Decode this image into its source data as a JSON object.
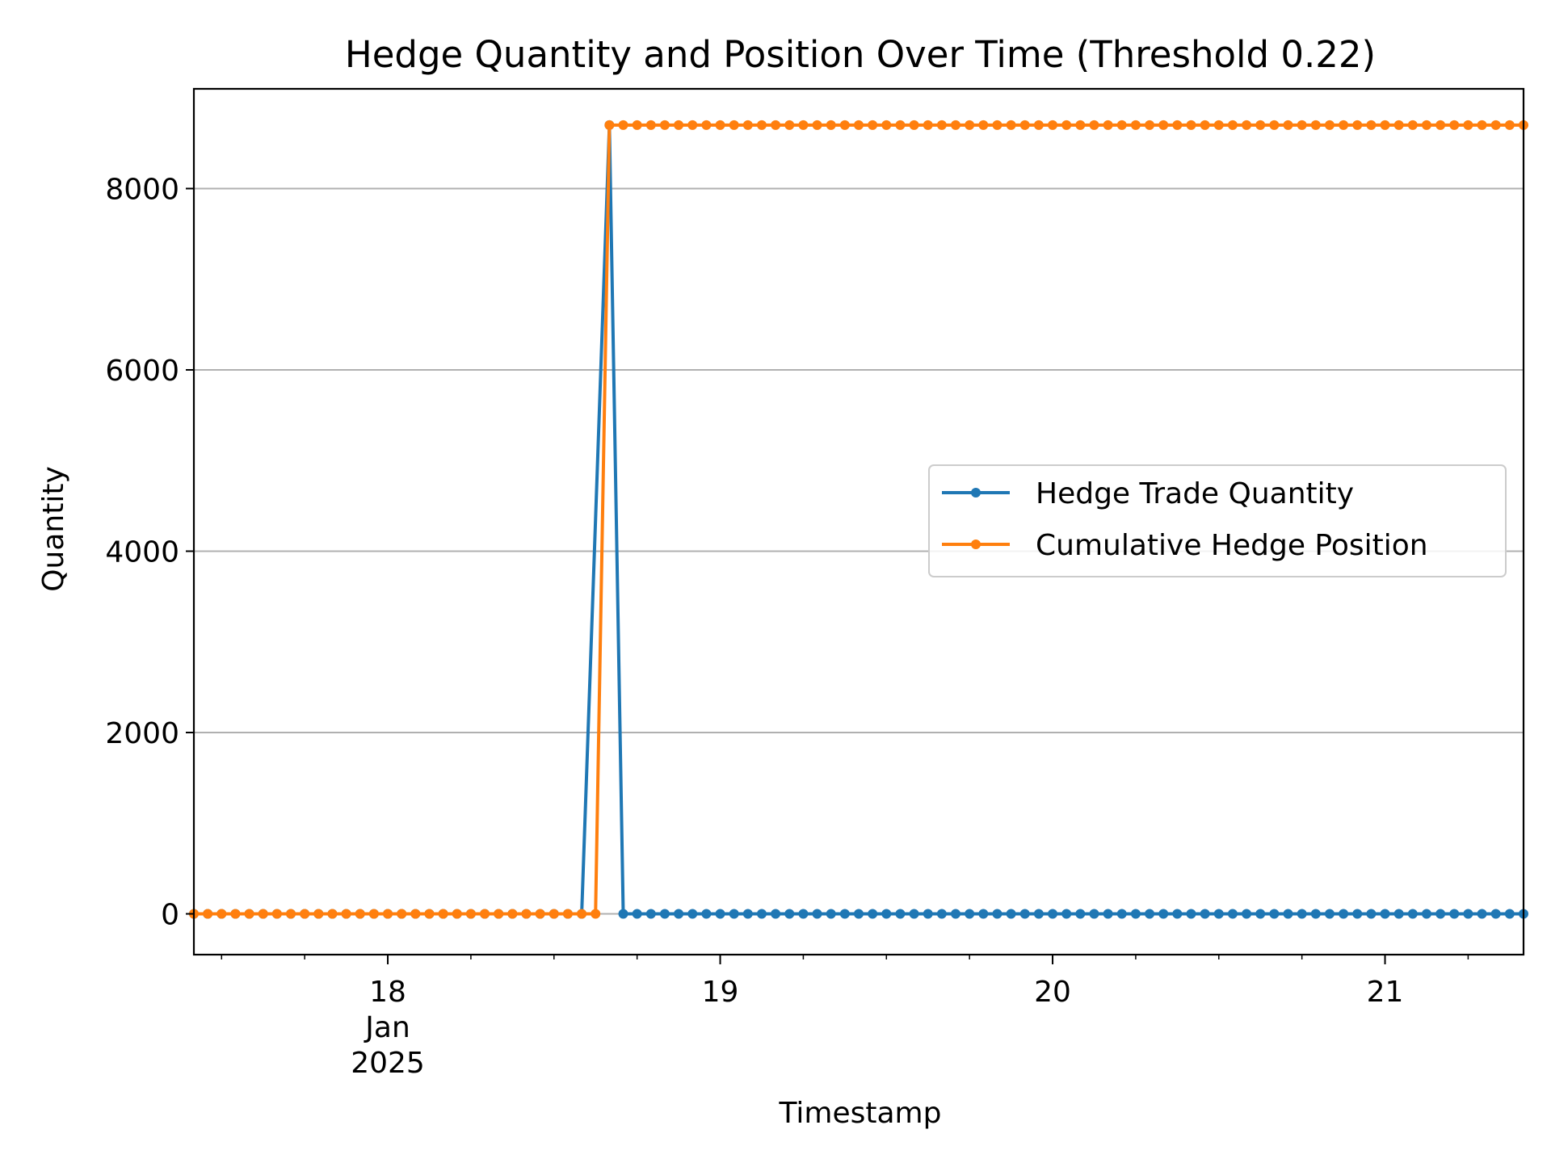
{
  "chart_data": {
    "type": "line",
    "title": "Hedge Quantity and Position Over Time (Threshold 0.22)",
    "xlabel": "Timestamp",
    "ylabel": "Quantity",
    "x_unit": "hours",
    "x_start": "2025-01-17 10:00",
    "x_step_hours": 1,
    "x_range": [
      "2025-01-17 10:00",
      "2025-01-21 10:00"
    ],
    "ylim": [
      -450,
      9100
    ],
    "y_ticks": [
      0,
      2000,
      4000,
      6000,
      8000
    ],
    "x_ticks": [
      {
        "date": "2025-01-18",
        "lines": [
          "18",
          "Jan",
          "2025"
        ]
      },
      {
        "date": "2025-01-19",
        "lines": [
          "19"
        ]
      },
      {
        "date": "2025-01-20",
        "lines": [
          "20"
        ]
      },
      {
        "date": "2025-01-21",
        "lines": [
          "21"
        ]
      }
    ],
    "grid": "horizontal",
    "legend_position": "center-right",
    "series": [
      {
        "name": "Hedge Trade Quantity",
        "color": "#1f77b4",
        "segments": [
          {
            "from": "2025-01-17 10:00",
            "to": "2025-01-18 14:00",
            "value": 0
          },
          {
            "at": "2025-01-18 16:00",
            "value": 8700
          },
          {
            "from": "2025-01-18 17:00",
            "to": "2025-01-21 10:00",
            "value": 0
          }
        ]
      },
      {
        "name": "Cumulative Hedge Position",
        "color": "#ff7f0e",
        "segments": [
          {
            "from": "2025-01-17 10:00",
            "to": "2025-01-18 15:00",
            "value": 0
          },
          {
            "from": "2025-01-18 16:00",
            "to": "2025-01-21 10:00",
            "value": 8700
          }
        ]
      }
    ]
  }
}
